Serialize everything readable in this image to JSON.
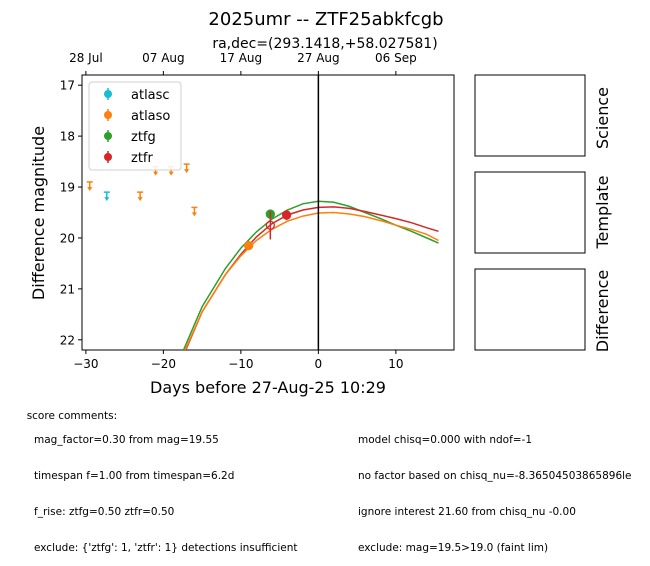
{
  "chart_data": {
    "type": "scatter",
    "title": "2025umr -- ZTF25abkfcgb",
    "subtitle": "ra,dec=(293.1418,+58.027581)",
    "xlabel": "Days before 27-Aug-25 10:29",
    "ylabel": "Difference magnitude",
    "xlim": [
      -30.5,
      17.5
    ],
    "ylim": [
      22.2,
      16.8
    ],
    "y_inverted": true,
    "x_ticks": [
      -30,
      -20,
      -10,
      0,
      10
    ],
    "x_tick_labels": [
      "−30",
      "−20",
      "−10",
      "0",
      "10"
    ],
    "y_ticks": [
      17,
      18,
      19,
      20,
      21,
      22
    ],
    "top_axis_ticks": [
      {
        "x": -30,
        "label": "28 Jul"
      },
      {
        "x": -20,
        "label": "07 Aug"
      },
      {
        "x": -10,
        "label": "17 Aug"
      },
      {
        "x": 0,
        "label": "27 Aug"
      },
      {
        "x": 10,
        "label": "06 Sep"
      }
    ],
    "vline_x": 0,
    "grid": false,
    "legend_position": "top-left",
    "legend": [
      {
        "name": "atlasc",
        "color": "#17becf"
      },
      {
        "name": "atlaso",
        "color": "#ff7f0e"
      },
      {
        "name": "ztfg",
        "color": "#2ca02c"
      },
      {
        "name": "ztfr",
        "color": "#d62728"
      }
    ],
    "upper_limits": [
      {
        "band": "atlaso",
        "x": -29.5,
        "y": 18.9
      },
      {
        "band": "atlasc",
        "x": -27.3,
        "y": 19.1
      },
      {
        "band": "atlaso",
        "x": -23.0,
        "y": 19.1
      },
      {
        "band": "atlaso",
        "x": -21.0,
        "y": 18.6
      },
      {
        "band": "atlaso",
        "x": -19.0,
        "y": 18.6
      },
      {
        "band": "atlaso",
        "x": -17.0,
        "y": 18.55
      },
      {
        "band": "atlaso",
        "x": -16.0,
        "y": 19.4
      }
    ],
    "detections": [
      {
        "band": "atlaso",
        "x": -9.0,
        "y": 20.15,
        "err": 0.08,
        "hollow": false
      },
      {
        "band": "ztfg",
        "x": -6.2,
        "y": 19.53,
        "err": 0.08,
        "hollow": false
      },
      {
        "band": "ztfr",
        "x": -6.2,
        "y": 19.75,
        "err": 0.28,
        "hollow": true
      },
      {
        "band": "ztfr",
        "x": -4.1,
        "y": 19.55,
        "err": 0.1,
        "hollow": false
      }
    ],
    "fit_curves": [
      {
        "band": "ztfg",
        "points": [
          [
            -17.4,
            22.2
          ],
          [
            -15,
            21.35
          ],
          [
            -12,
            20.6
          ],
          [
            -10,
            20.2
          ],
          [
            -8,
            19.88
          ],
          [
            -6,
            19.63
          ],
          [
            -4,
            19.45
          ],
          [
            -2,
            19.33
          ],
          [
            0,
            19.28
          ],
          [
            2,
            19.3
          ],
          [
            4,
            19.38
          ],
          [
            6,
            19.5
          ],
          [
            8,
            19.62
          ],
          [
            10,
            19.75
          ],
          [
            12,
            19.87
          ],
          [
            14,
            20.0
          ],
          [
            15.5,
            20.1
          ]
        ]
      },
      {
        "band": "ztfr",
        "points": [
          [
            -17.1,
            22.2
          ],
          [
            -15,
            21.45
          ],
          [
            -12,
            20.72
          ],
          [
            -10,
            20.32
          ],
          [
            -8,
            19.98
          ],
          [
            -6,
            19.72
          ],
          [
            -4,
            19.55
          ],
          [
            -2,
            19.45
          ],
          [
            0,
            19.4
          ],
          [
            2,
            19.39
          ],
          [
            4,
            19.42
          ],
          [
            6,
            19.48
          ],
          [
            8,
            19.55
          ],
          [
            10,
            19.62
          ],
          [
            12,
            19.7
          ],
          [
            14,
            19.8
          ],
          [
            15.5,
            19.87
          ]
        ]
      },
      {
        "band": "atlaso",
        "points": [
          [
            -17.2,
            22.2
          ],
          [
            -15,
            21.45
          ],
          [
            -12,
            20.72
          ],
          [
            -10,
            20.35
          ],
          [
            -8,
            20.05
          ],
          [
            -6,
            19.83
          ],
          [
            -4,
            19.67
          ],
          [
            -2,
            19.57
          ],
          [
            0,
            19.51
          ],
          [
            2,
            19.5
          ],
          [
            4,
            19.53
          ],
          [
            6,
            19.58
          ],
          [
            8,
            19.66
          ],
          [
            10,
            19.75
          ],
          [
            12,
            19.83
          ],
          [
            14,
            19.93
          ],
          [
            15.5,
            20.05
          ]
        ]
      }
    ]
  },
  "side_panels": [
    {
      "label": "Science"
    },
    {
      "label": "Template"
    },
    {
      "label": "Difference"
    }
  ],
  "comments": {
    "heading": "score comments:",
    "left": [
      "mag_factor=0.30 from mag=19.55",
      "timespan f=1.00 from timespan=6.2d",
      "f_rise: ztfg=0.50 ztfr=0.50",
      "exclude: {'ztfg': 1, 'ztfr': 1} detections insufficient"
    ],
    "right": [
      "model chisq=0.000 with ndof=-1",
      "no factor based on chisq_nu=-8.36504503865896le",
      "ignore interest 21.60 from chisq_nu -0.00",
      "exclude: mag=19.5>19.0 (faint lim)"
    ]
  }
}
